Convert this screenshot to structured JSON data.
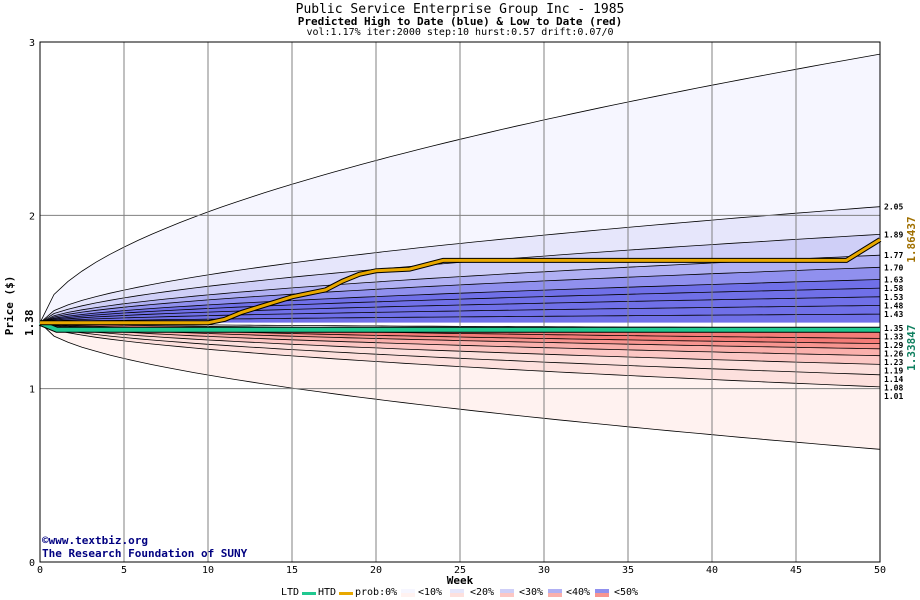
{
  "header": {
    "title": "Public Service Enterprise Group Inc - 1985",
    "subtitle": "Predicted High to Date (blue) &  Low to Date (red)",
    "params": "vol:1.17% iter:2000 step:10 hurst:0.57 drift:0.07/0"
  },
  "credits": {
    "line1": "©www.textbiz.org",
    "line2": "The Research Foundation of SUNY"
  },
  "chart_data": {
    "type": "area",
    "xlabel": "Week",
    "ylabel": "Price ($)",
    "xlim": [
      0,
      50
    ],
    "ylim": [
      0,
      3
    ],
    "x_ticks": [
      0,
      5,
      10,
      15,
      20,
      25,
      30,
      35,
      40,
      45,
      50
    ],
    "y_ticks": [
      0,
      1,
      2,
      3
    ],
    "start_value": 1.38,
    "start_label": "1.38",
    "htd_value_label": "1.86437",
    "ltd_value_label": "1.33847",
    "right_labels": [
      "2.05",
      "1.89",
      "1.77",
      "1.70",
      "1.63",
      "1.58",
      "1.53",
      "1.48",
      "1.43",
      "1.35",
      "1.33",
      "1.29",
      "1.26",
      "1.23",
      "1.19",
      "1.14",
      "1.08",
      "1.01"
    ],
    "high_quantiles": [
      {
        "band": "prob:0%",
        "end": 2.93
      },
      {
        "band": "<10%",
        "end": 2.05
      },
      {
        "band": "<20%",
        "end": 1.89
      },
      {
        "band": "<30%",
        "end": 1.77
      },
      {
        "band": "<40%",
        "end": 1.7
      },
      {
        "band": "<50%",
        "end": 1.63
      },
      {
        "band": "<50%",
        "end": 1.58
      },
      {
        "band": "<50%",
        "end": 1.53
      },
      {
        "band": "<50%",
        "end": 1.48
      },
      {
        "band": "<50%",
        "end": 1.43
      },
      {
        "band": "<50%",
        "end": 1.35
      }
    ],
    "low_quantiles": [
      {
        "band": "<50%",
        "end": 1.33
      },
      {
        "band": "<50%",
        "end": 1.29
      },
      {
        "band": "<50%",
        "end": 1.26
      },
      {
        "band": "<40%",
        "end": 1.23
      },
      {
        "band": "<30%",
        "end": 1.19
      },
      {
        "band": "<20%",
        "end": 1.14
      },
      {
        "band": "<10%",
        "end": 1.08
      },
      {
        "band": "<10%",
        "end": 1.01
      },
      {
        "band": "prob:0%",
        "end": 0.65
      }
    ],
    "htd_series": {
      "name": "HTD",
      "color": "#e8a800",
      "points": [
        [
          0,
          1.38
        ],
        [
          10,
          1.38
        ],
        [
          11,
          1.4
        ],
        [
          12,
          1.44
        ],
        [
          13,
          1.47
        ],
        [
          14,
          1.5
        ],
        [
          15,
          1.53
        ],
        [
          16,
          1.55
        ],
        [
          17,
          1.57
        ],
        [
          18,
          1.62
        ],
        [
          19,
          1.66
        ],
        [
          20,
          1.68
        ],
        [
          22,
          1.69
        ],
        [
          24,
          1.74
        ],
        [
          30,
          1.74
        ],
        [
          40,
          1.74
        ],
        [
          48,
          1.74
        ],
        [
          49,
          1.8
        ],
        [
          50,
          1.86
        ]
      ]
    },
    "ltd_series": {
      "name": "LTD",
      "color": "#20c890",
      "points": [
        [
          0,
          1.38
        ],
        [
          1,
          1.34
        ],
        [
          5,
          1.34
        ],
        [
          10,
          1.34
        ],
        [
          20,
          1.34
        ],
        [
          30,
          1.34
        ],
        [
          40,
          1.34
        ],
        [
          50,
          1.34
        ]
      ]
    }
  },
  "legend": {
    "items": [
      "LTD",
      "HTD",
      "prob:0%",
      "<10%",
      "<20%",
      "<30%",
      "<40%",
      "<50%"
    ],
    "colors": {
      "ltd": "#20c890",
      "htd": "#e8a800",
      "p0": "#f6f6ff",
      "p10": "#e6e6fb",
      "p20": "#cfcff7",
      "p30": "#b0b0f3",
      "p40": "#9090ee",
      "p50": "#7070e8",
      "r0": "#fff2f0",
      "r10": "#fde0dd",
      "r20": "#fcc7c4",
      "r30": "#fab0ac",
      "r40": "#f79590",
      "r50": "#f47c78"
    }
  }
}
